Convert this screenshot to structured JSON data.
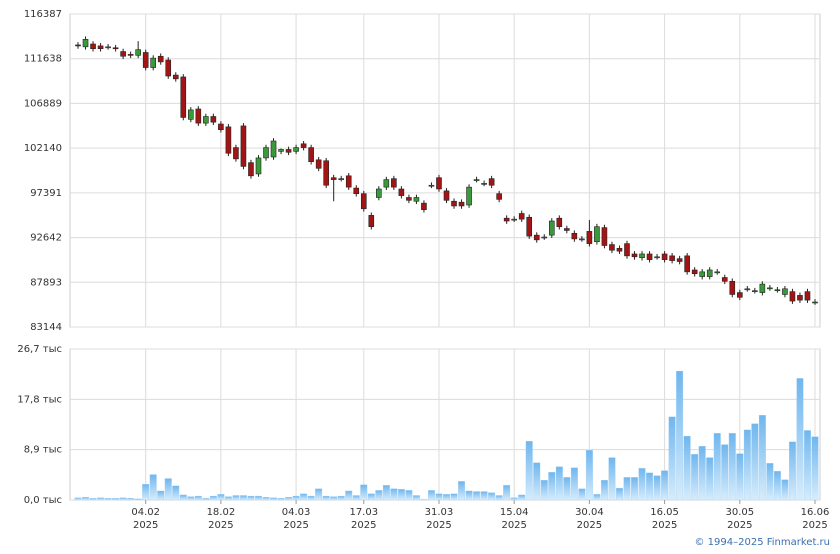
{
  "chart_data": [
    {
      "type": "candlestick",
      "up_color": "#3a9a3a",
      "down_color": "#a31515",
      "grid": true,
      "ylim": [
        83144,
        116387
      ],
      "yticks": [
        83144,
        87893,
        92642,
        97391,
        102140,
        106889,
        111638,
        116387
      ],
      "open": [
        113100,
        112900,
        113200,
        113000,
        112900,
        112800,
        112400,
        112100,
        112000,
        112300,
        110700,
        111900,
        111500,
        109900,
        109700,
        105200,
        106300,
        104800,
        105500,
        104700,
        104400,
        102200,
        104500,
        100600,
        99400,
        101100,
        101200,
        101800,
        102000,
        101800,
        102600,
        102200,
        100900,
        100800,
        99000,
        98900,
        99200,
        97900,
        97300,
        95000,
        96900,
        98000,
        98900,
        97800,
        96900,
        96500,
        96300,
        98200,
        99000,
        97600,
        96500,
        96400,
        96100,
        98800,
        98400,
        98900,
        97300,
        94700,
        94600,
        95200,
        94800,
        92900,
        92700,
        92900,
        94700,
        93600,
        93100,
        92500,
        93300,
        92200,
        93700,
        91900,
        91500,
        92000,
        90900,
        90500,
        90900,
        90600,
        90900,
        90700,
        90400,
        90700,
        89200,
        88500,
        88500,
        89000,
        88400,
        88000,
        86800,
        87200,
        87000,
        86800,
        87300,
        87100,
        86600,
        86900,
        86500,
        86900,
        85800
      ],
      "high": [
        113400,
        114000,
        113500,
        113300,
        113200,
        113100,
        112700,
        112400,
        113500,
        112600,
        112000,
        112200,
        111800,
        110200,
        110000,
        106500,
        106600,
        105800,
        105800,
        105000,
        104700,
        102500,
        104800,
        100900,
        101400,
        102500,
        103200,
        102100,
        102300,
        102500,
        102900,
        102500,
        101200,
        101100,
        99300,
        99200,
        99500,
        98200,
        97600,
        95300,
        98100,
        99100,
        99200,
        98100,
        97200,
        97200,
        96600,
        98500,
        99300,
        97900,
        96800,
        96700,
        98300,
        99100,
        98700,
        99200,
        97600,
        95000,
        94900,
        95500,
        95100,
        93200,
        93000,
        94700,
        95000,
        93900,
        93400,
        92800,
        94500,
        94100,
        94000,
        92200,
        91800,
        92300,
        91200,
        91200,
        91200,
        90900,
        91200,
        91000,
        90700,
        91000,
        89500,
        89300,
        89500,
        89300,
        88700,
        88300,
        87100,
        87500,
        87300,
        88000,
        87600,
        87400,
        87500,
        87200,
        86800,
        87200,
        86100
      ],
      "low": [
        112700,
        112600,
        112400,
        112400,
        112600,
        112400,
        111600,
        111700,
        111700,
        110400,
        110400,
        111000,
        109500,
        109200,
        105100,
        104900,
        104500,
        104500,
        104600,
        103800,
        101300,
        100700,
        99900,
        98900,
        99100,
        100800,
        100900,
        101500,
        101400,
        101500,
        101900,
        100400,
        99700,
        97900,
        96500,
        98600,
        97700,
        97000,
        95400,
        93500,
        96600,
        97700,
        97700,
        96800,
        96300,
        96200,
        95300,
        97900,
        97500,
        96300,
        95700,
        95700,
        95800,
        98500,
        98100,
        97900,
        96400,
        94100,
        94300,
        94300,
        92500,
        92100,
        92400,
        92600,
        93500,
        93100,
        92200,
        92200,
        91700,
        91900,
        91500,
        91000,
        90900,
        90400,
        90300,
        90200,
        90000,
        90300,
        90000,
        89900,
        89800,
        88700,
        88500,
        88200,
        88200,
        88700,
        87700,
        86300,
        86000,
        86900,
        86700,
        86500,
        87000,
        86800,
        86300,
        85600,
        85700,
        85700,
        85500
      ],
      "close": [
        113000,
        113700,
        112700,
        112700,
        112900,
        112700,
        111900,
        112000,
        112600,
        110700,
        111700,
        111300,
        109800,
        109500,
        105400,
        106200,
        104800,
        105500,
        104900,
        104100,
        101600,
        101000,
        100200,
        99200,
        101100,
        102200,
        102900,
        102000,
        101700,
        102200,
        102200,
        100700,
        100000,
        98200,
        98800,
        98900,
        98000,
        97300,
        95700,
        93800,
        97800,
        98800,
        98000,
        97100,
        96600,
        96900,
        95600,
        98200,
        97800,
        96600,
        96000,
        96000,
        98000,
        98800,
        98400,
        98200,
        96700,
        94400,
        94600,
        94600,
        92800,
        92400,
        92700,
        94400,
        93800,
        93400,
        92500,
        92500,
        92000,
        93800,
        91800,
        91300,
        91200,
        90700,
        90600,
        90900,
        90300,
        90600,
        90300,
        90200,
        90100,
        89000,
        88800,
        89000,
        89200,
        89000,
        88000,
        86600,
        86300,
        87200,
        87000,
        87700,
        87300,
        87100,
        87200,
        85900,
        86000,
        86000,
        85800
      ]
    },
    {
      "type": "bar",
      "color": "#9fd0f5",
      "grid": true,
      "ylim": [
        0,
        26.7
      ],
      "yticks": [
        {
          "value": 0,
          "label": "0,0 тыс"
        },
        {
          "value": 8.9,
          "label": "8,9 тыс"
        },
        {
          "value": 17.8,
          "label": "17,8 тыс"
        },
        {
          "value": 26.7,
          "label": "26,7 тыс"
        }
      ],
      "year_label": "2025",
      "categories": [
        null,
        null,
        null,
        null,
        null,
        null,
        null,
        null,
        null,
        "04.02",
        null,
        null,
        null,
        null,
        null,
        null,
        null,
        null,
        null,
        "18.02",
        null,
        null,
        null,
        null,
        null,
        null,
        null,
        null,
        null,
        "04.03",
        null,
        null,
        null,
        null,
        null,
        null,
        null,
        null,
        "17.03",
        null,
        null,
        null,
        null,
        null,
        null,
        null,
        null,
        null,
        "31.03",
        null,
        null,
        null,
        null,
        null,
        null,
        null,
        null,
        null,
        "15.04",
        null,
        null,
        null,
        null,
        null,
        null,
        null,
        null,
        null,
        "30.04",
        null,
        null,
        null,
        null,
        null,
        null,
        null,
        null,
        null,
        "16.05",
        null,
        null,
        null,
        null,
        null,
        null,
        null,
        null,
        null,
        "30.05",
        null,
        null,
        null,
        null,
        null,
        null,
        null,
        null,
        null,
        "16.06"
      ],
      "values": [
        0.4,
        0.5,
        0.3,
        0.4,
        0.3,
        0.3,
        0.4,
        0.3,
        0.2,
        2.8,
        4.5,
        1.6,
        3.8,
        2.5,
        0.9,
        0.6,
        0.7,
        0.3,
        0.7,
        1.0,
        0.6,
        0.8,
        0.8,
        0.7,
        0.7,
        0.5,
        0.4,
        0.3,
        0.5,
        0.7,
        1.1,
        0.7,
        2.0,
        0.7,
        0.6,
        0.7,
        1.6,
        0.8,
        2.7,
        1.1,
        1.7,
        2.6,
        2.0,
        1.9,
        1.7,
        0.8,
        0.1,
        1.7,
        1.1,
        1.0,
        1.1,
        3.3,
        1.6,
        1.5,
        1.5,
        1.3,
        0.8,
        2.6,
        0.4,
        0.9,
        10.4,
        6.6,
        3.5,
        4.9,
        5.9,
        4.0,
        5.7,
        2.0,
        8.8,
        1.0,
        3.5,
        7.5,
        2.1,
        4.0,
        4.0,
        5.6,
        4.8,
        4.3,
        5.2,
        14.7,
        22.8,
        11.3,
        8.1,
        9.5,
        7.5,
        11.8,
        9.8,
        11.8,
        8.2,
        12.4,
        13.5,
        15.0,
        6.5,
        5.1,
        3.6,
        10.3,
        21.5,
        12.3,
        11.2
      ]
    }
  ],
  "footer": "© 1994–2025 Finmarket.ru"
}
